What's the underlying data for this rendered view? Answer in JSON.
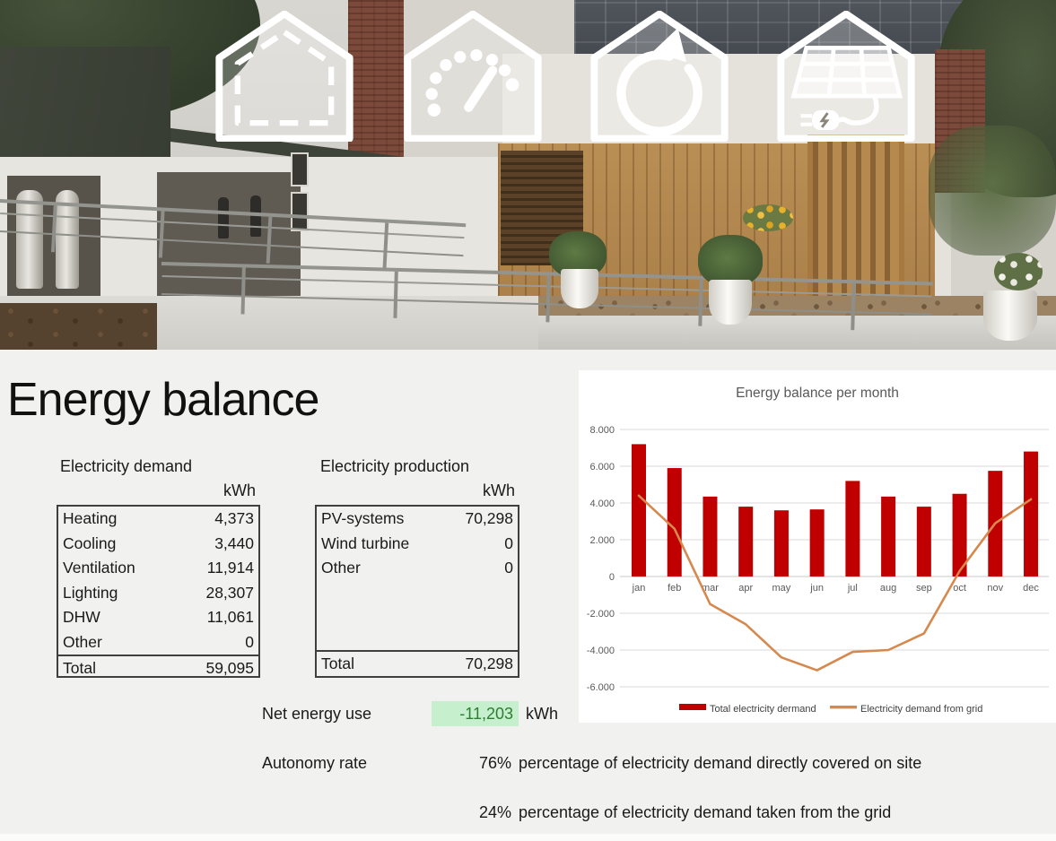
{
  "page": {
    "title": "Energy balance"
  },
  "header": {
    "icons": [
      {
        "name": "house-outline-icon"
      },
      {
        "name": "house-gauge-icon"
      },
      {
        "name": "house-recycle-arrow-icon"
      },
      {
        "name": "house-solar-plug-icon"
      }
    ]
  },
  "demand_table": {
    "title": "Electricity demand",
    "unit": "kWh",
    "rows": [
      [
        "Heating",
        "4,373"
      ],
      [
        "Cooling",
        "3,440"
      ],
      [
        "Ventilation",
        "11,914"
      ],
      [
        "Lighting",
        "28,307"
      ],
      [
        "DHW",
        "11,061"
      ],
      [
        "Other",
        "0"
      ]
    ],
    "total_label": "Total",
    "total_value": "59,095"
  },
  "production_table": {
    "title": "Electricity production",
    "unit": "kWh",
    "rows": [
      [
        "PV-systems",
        "70,298"
      ],
      [
        "Wind turbine",
        "0"
      ],
      [
        "Other",
        "0"
      ]
    ],
    "total_label": "Total",
    "total_value": "70,298"
  },
  "net_energy": {
    "label": "Net energy use",
    "value": "-11,203",
    "unit": "kWh",
    "cell_bg": "#c6efce",
    "cell_text": "#2e7d32"
  },
  "autonomy": {
    "label": "Autonomy rate",
    "rows": [
      {
        "pct": "76%",
        "desc": "percentage of electricity demand directly covered on site"
      },
      {
        "pct": "24%",
        "desc": "percentage of electricity demand taken from the grid"
      }
    ]
  },
  "chart_data": {
    "type": "bar+line",
    "title": "Energy balance per month",
    "categories": [
      "jan",
      "feb",
      "mar",
      "apr",
      "may",
      "jun",
      "jul",
      "aug",
      "sep",
      "oct",
      "nov",
      "dec"
    ],
    "series": [
      {
        "name": "Total electricity dermand",
        "type": "bar",
        "color": "#c00000",
        "values": [
          7200,
          5900,
          4350,
          3800,
          3600,
          3650,
          5200,
          4350,
          3800,
          4500,
          5750,
          6800
        ]
      },
      {
        "name": "Electricity demand from grid",
        "type": "line",
        "color": "#d6894e",
        "values": [
          4400,
          2600,
          -1500,
          -2600,
          -4400,
          -5100,
          -4100,
          -4000,
          -3100,
          300,
          2900,
          4200
        ]
      }
    ],
    "ylim": [
      -6000,
      8000
    ],
    "ytick_values": [
      8000,
      6000,
      4000,
      2000,
      0,
      -2000,
      -4000,
      -6000
    ],
    "ytick_labels": [
      "8.000",
      "6.000",
      "4.000",
      "2.000",
      "0",
      "-2.000",
      "-4.000",
      "-6.000"
    ],
    "grid": true,
    "grid_color": "#d9d9d9",
    "axis_text_color": "#595959",
    "legend_position": "bottom"
  }
}
